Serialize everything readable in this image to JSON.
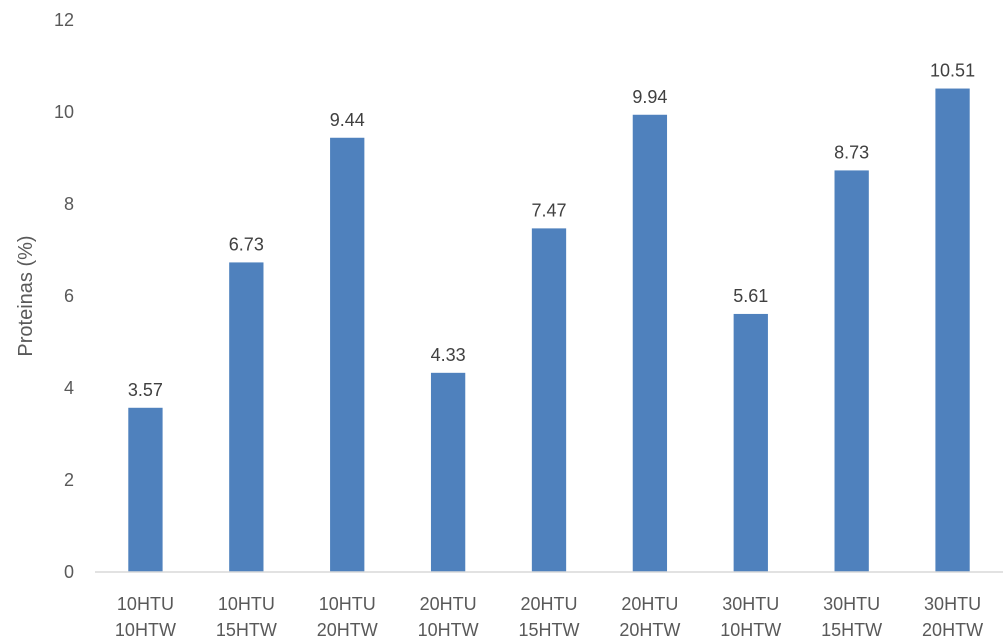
{
  "chart_data": {
    "type": "bar",
    "categories": [
      [
        "10HTU",
        "10HTW"
      ],
      [
        "10HTU",
        "15HTW"
      ],
      [
        "10HTU",
        "20HTW"
      ],
      [
        "20HTU",
        "10HTW"
      ],
      [
        "20HTU",
        "15HTW"
      ],
      [
        "20HTU",
        "20HTW"
      ],
      [
        "30HTU",
        "10HTW"
      ],
      [
        "30HTU",
        "15HTW"
      ],
      [
        "30HTU",
        "20HTW"
      ]
    ],
    "values": [
      3.57,
      6.73,
      9.44,
      4.33,
      7.47,
      9.94,
      5.61,
      8.73,
      10.51
    ],
    "data_labels": [
      "3.57",
      "6.73",
      "9.44",
      "4.33",
      "7.47",
      "9.94",
      "5.61",
      "8.73",
      "10.51"
    ],
    "title": "",
    "xlabel": "",
    "ylabel": "Proteinas (%)",
    "ylim": [
      0,
      12
    ],
    "yticks": [
      0,
      2,
      4,
      6,
      8,
      10,
      12
    ],
    "grid": false,
    "legend": "none",
    "bar_color": "#4F81BD"
  }
}
